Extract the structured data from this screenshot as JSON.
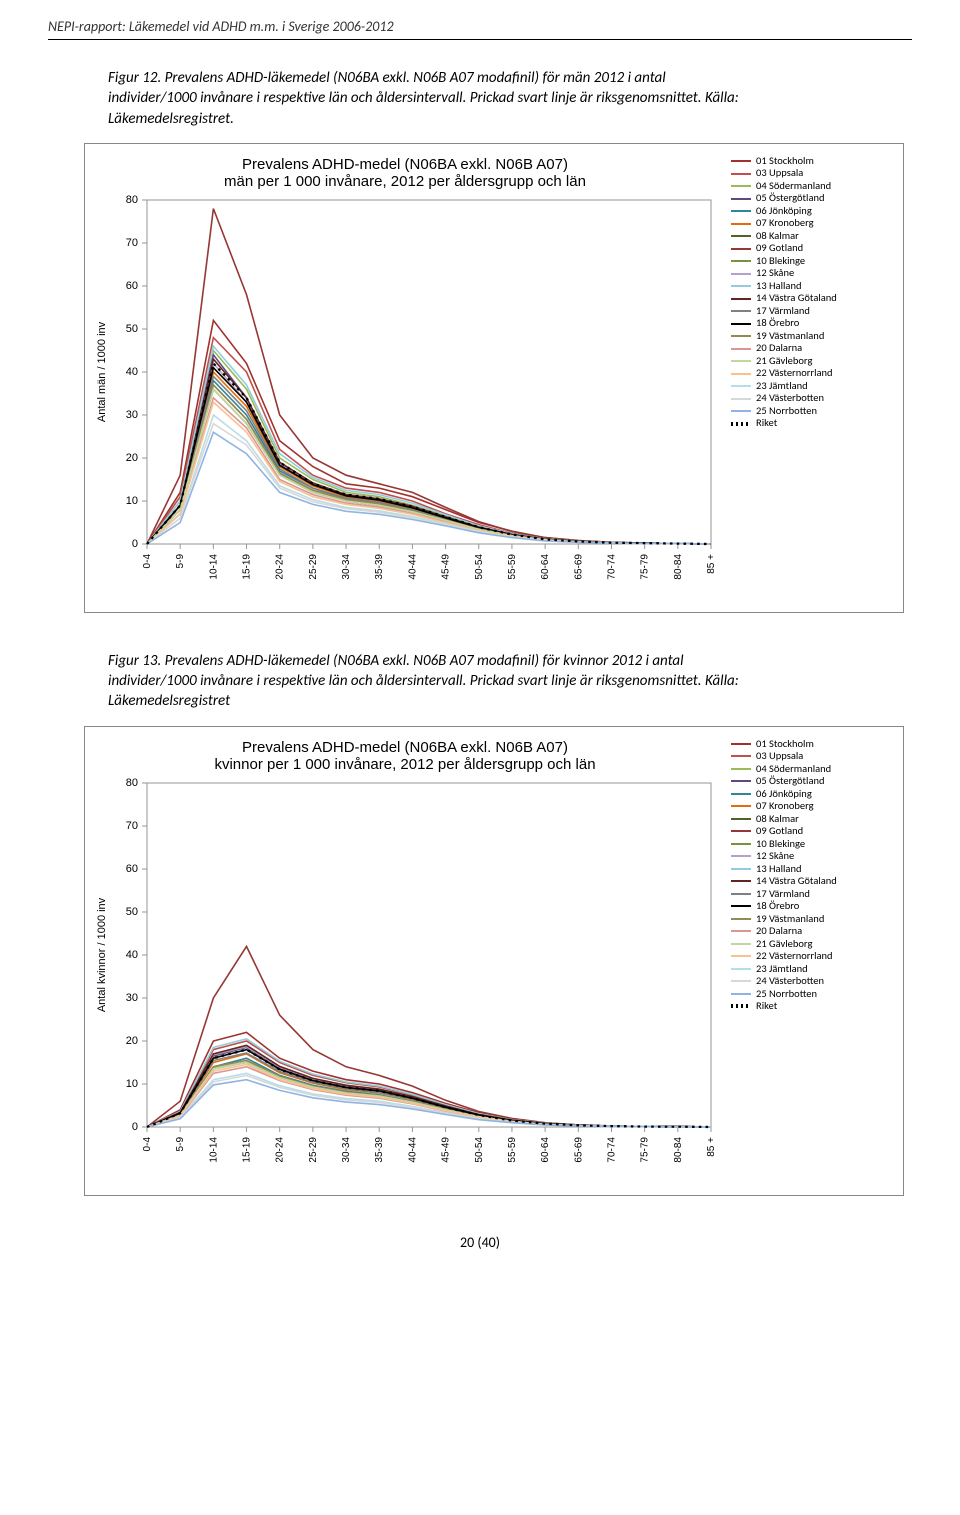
{
  "running_head": "NEPI-rapport: Läkemedel vid ADHD m.m. i Sverige 2006-2012",
  "page_number": "20 (40)",
  "caption_fig12": "Figur 12. Prevalens ADHD-läkemedel (N06BA exkl. N06B A07 modafinil) för män 2012 i antal individer/1000 invånare i respektive län och åldersintervall. Prickad svart linje är riksgenomsnittet. Källa: Läkemedelsregistret.",
  "caption_fig13": "Figur 13. Prevalens ADHD-läkemedel (N06BA exkl. N06B A07 modafinil) för kvinnor 2012 i antal individer/1000 invånare i respektive län och åldersintervall. Prickad svart linje är riksgenomsnittet. Källa: Läkemedelsregistret",
  "chart_shared": {
    "title_line1": "Prevalens ADHD-medel (N06BA exkl. N06B A07)",
    "xlabels": [
      "0-4",
      "5-9",
      "10-14",
      "15-19",
      "20-24",
      "25-29",
      "30-34",
      "35-39",
      "40-44",
      "45-49",
      "50-54",
      "55-59",
      "60-64",
      "65-69",
      "70-74",
      "75-79",
      "80-84",
      "85 +"
    ],
    "yticks": [
      0,
      10,
      20,
      30,
      40,
      50,
      60,
      70,
      80
    ],
    "ylim_max": 80,
    "axis_color": "#969696",
    "background": "#ffffff",
    "legend": [
      {
        "code": "01",
        "name": "01 Stockholm",
        "color": "#a0322e"
      },
      {
        "code": "03",
        "name": "03 Uppsala",
        "color": "#c0504d"
      },
      {
        "code": "04",
        "name": "04 Södermanland",
        "color": "#9bbb59"
      },
      {
        "code": "05",
        "name": "05 Östergötland",
        "color": "#604a7b"
      },
      {
        "code": "06",
        "name": "06 Jönköping",
        "color": "#31859c"
      },
      {
        "code": "07",
        "name": "07 Kronoberg",
        "color": "#e46c0a"
      },
      {
        "code": "08",
        "name": "08 Kalmar",
        "color": "#4f6228"
      },
      {
        "code": "09",
        "name": "09 Gotland",
        "color": "#953735"
      },
      {
        "code": "10",
        "name": "10 Blekinge",
        "color": "#77933c"
      },
      {
        "code": "12",
        "name": "12 Skåne",
        "color": "#b3a2c7"
      },
      {
        "code": "13",
        "name": "13 Halland",
        "color": "#93cddd"
      },
      {
        "code": "14",
        "name": "14 Västra Götaland",
        "color": "#632523"
      },
      {
        "code": "17",
        "name": "17 Värmland",
        "color": "#808080"
      },
      {
        "code": "18",
        "name": "18 Örebro",
        "color": "#000000"
      },
      {
        "code": "19",
        "name": "19 Västmanland",
        "color": "#948a54"
      },
      {
        "code": "20",
        "name": "20 Dalarna",
        "color": "#d99694"
      },
      {
        "code": "21",
        "name": "21 Gävleborg",
        "color": "#c3d69b"
      },
      {
        "code": "22",
        "name": "22 Västernorrland",
        "color": "#fac090"
      },
      {
        "code": "23",
        "name": "23 Jämtland",
        "color": "#b7dee8"
      },
      {
        "code": "24",
        "name": "24 Västerbotten",
        "color": "#d8d8d8"
      },
      {
        "code": "25",
        "name": "25 Norrbotten",
        "color": "#8eb4e3"
      },
      {
        "code": "R",
        "name": "Riket",
        "color": "#000000",
        "dotted": true
      }
    ]
  },
  "chart_men": {
    "title_line2": "män per 1 000 invånare, 2012 per åldersgrupp och län",
    "ylabel": "Antal män / 1000 inv",
    "series": {
      "01": [
        0,
        12,
        52,
        42,
        24,
        18,
        14,
        13,
        11,
        8,
        5,
        3,
        1.5,
        0.8,
        0.4,
        0.2,
        0.1,
        0
      ],
      "03": [
        0,
        11,
        48,
        40,
        22,
        16,
        13,
        12,
        10,
        7,
        4.5,
        2.5,
        1.3,
        0.7,
        0.4,
        0.2,
        0.1,
        0
      ],
      "04": [
        0,
        10,
        45,
        36,
        20,
        15,
        12,
        11,
        9,
        6.5,
        4,
        2.3,
        1.2,
        0.6,
        0.3,
        0.2,
        0.1,
        0
      ],
      "05": [
        0,
        9,
        44,
        34,
        19,
        14,
        11.5,
        10.5,
        8.8,
        6.3,
        3.9,
        2.2,
        1.1,
        0.6,
        0.3,
        0.2,
        0.1,
        0
      ],
      "06": [
        0,
        8,
        38,
        30,
        17,
        13,
        10.5,
        9.5,
        8,
        5.8,
        3.6,
        2,
        1,
        0.5,
        0.3,
        0.1,
        0.1,
        0
      ],
      "07": [
        0,
        9,
        40,
        32,
        18,
        13.5,
        11,
        10,
        8.3,
        6,
        3.7,
        2.1,
        1.1,
        0.6,
        0.3,
        0.2,
        0.1,
        0
      ],
      "08": [
        0,
        8,
        36,
        28,
        16,
        12,
        10,
        9,
        7.5,
        5.5,
        3.4,
        1.9,
        1,
        0.5,
        0.3,
        0.1,
        0.1,
        0
      ],
      "09": [
        0,
        16,
        78,
        58,
        30,
        20,
        16,
        14,
        12,
        8.5,
        5.2,
        2.9,
        1.5,
        0.8,
        0.4,
        0.2,
        0.1,
        0
      ],
      "10": [
        0,
        8,
        37,
        29,
        16.5,
        12.5,
        10.3,
        9.3,
        7.7,
        5.6,
        3.5,
        2,
        1,
        0.5,
        0.3,
        0.1,
        0.1,
        0
      ],
      "12": [
        0,
        9,
        42,
        33,
        18.5,
        14,
        11.3,
        10.3,
        8.5,
        6.2,
        3.8,
        2.2,
        1.1,
        0.6,
        0.3,
        0.2,
        0.1,
        0
      ],
      "13": [
        0,
        10,
        46,
        37,
        21,
        15.5,
        12.5,
        11.5,
        9.5,
        6.8,
        4.2,
        2.4,
        1.2,
        0.7,
        0.3,
        0.2,
        0.1,
        0
      ],
      "14": [
        0,
        9,
        43,
        34,
        19,
        14.2,
        11.5,
        10.5,
        8.7,
        6.3,
        3.9,
        2.2,
        1.1,
        0.6,
        0.3,
        0.2,
        0.1,
        0
      ],
      "17": [
        0,
        8,
        39,
        31,
        17.5,
        13,
        10.7,
        9.7,
        8,
        5.9,
        3.6,
        2.1,
        1.1,
        0.6,
        0.3,
        0.2,
        0.1,
        0
      ],
      "18": [
        0,
        9,
        41,
        33,
        18.3,
        13.8,
        11.2,
        10.2,
        8.4,
        6.1,
        3.8,
        2.2,
        1.1,
        0.6,
        0.3,
        0.2,
        0.1,
        0
      ],
      "19": [
        0,
        8,
        37,
        29,
        16.5,
        12.5,
        10.3,
        9.3,
        7.7,
        5.6,
        3.5,
        2,
        1,
        0.5,
        0.3,
        0.1,
        0.1,
        0
      ],
      "20": [
        0,
        7,
        34,
        27,
        15,
        11.5,
        9.5,
        8.6,
        7.1,
        5.2,
        3.2,
        1.8,
        0.9,
        0.5,
        0.2,
        0.1,
        0.1,
        0
      ],
      "21": [
        0,
        8,
        36,
        28,
        16,
        12,
        10,
        9,
        7.5,
        5.5,
        3.4,
        1.9,
        1,
        0.5,
        0.3,
        0.1,
        0.1,
        0
      ],
      "22": [
        0,
        7,
        33,
        26,
        14.5,
        11,
        9.2,
        8.3,
        6.9,
        5,
        3.1,
        1.8,
        0.9,
        0.5,
        0.2,
        0.1,
        0.1,
        0
      ],
      "23": [
        0,
        6,
        30,
        24,
        13.5,
        10.3,
        8.5,
        7.7,
        6.4,
        4.7,
        2.9,
        1.6,
        0.8,
        0.4,
        0.2,
        0.1,
        0.1,
        0
      ],
      "24": [
        0,
        6,
        28,
        23,
        13,
        9.8,
        8.2,
        7.4,
        6.1,
        4.5,
        2.8,
        1.6,
        0.8,
        0.4,
        0.2,
        0.1,
        0.1,
        0
      ],
      "25": [
        0,
        5,
        26,
        21,
        12,
        9.2,
        7.6,
        6.9,
        5.7,
        4.2,
        2.6,
        1.5,
        0.7,
        0.4,
        0.2,
        0.1,
        0.1,
        0
      ],
      "R": [
        0,
        9,
        42,
        34,
        19,
        14,
        11.5,
        10.5,
        8.7,
        6.3,
        3.9,
        2.2,
        1.1,
        0.6,
        0.3,
        0.2,
        0.1,
        0
      ]
    }
  },
  "chart_women": {
    "title_line2": "kvinnor per 1 000 invånare, 2012 per åldersgrupp och län",
    "ylabel": "Antal kvinnor / 1000 inv",
    "series": {
      "01": [
        0,
        4,
        20,
        22,
        16,
        13,
        11,
        10,
        8,
        5.5,
        3.3,
        1.8,
        0.9,
        0.5,
        0.2,
        0.1,
        0.1,
        0
      ],
      "03": [
        0,
        3.5,
        18,
        20,
        15,
        12,
        10.3,
        9.3,
        7.5,
        5.1,
        3.1,
        1.7,
        0.8,
        0.4,
        0.2,
        0.1,
        0.1,
        0
      ],
      "04": [
        0,
        3.3,
        17,
        19,
        14,
        11.3,
        9.7,
        8.8,
        7.1,
        4.9,
        2.9,
        1.6,
        0.8,
        0.4,
        0.2,
        0.1,
        0.1,
        0
      ],
      "05": [
        0,
        3.2,
        16.5,
        18.5,
        13.7,
        11,
        9.5,
        8.6,
        6.9,
        4.7,
        2.8,
        1.6,
        0.8,
        0.4,
        0.2,
        0.1,
        0.1,
        0
      ],
      "06": [
        0,
        2.8,
        14,
        16,
        12,
        9.7,
        8.3,
        7.5,
        6,
        4.1,
        2.5,
        1.4,
        0.7,
        0.3,
        0.2,
        0.1,
        0,
        0
      ],
      "07": [
        0,
        3,
        15,
        17,
        12.6,
        10.2,
        8.7,
        7.9,
        6.4,
        4.4,
        2.6,
        1.5,
        0.7,
        0.4,
        0.2,
        0.1,
        0.1,
        0
      ],
      "08": [
        0,
        2.7,
        13.5,
        15,
        11.5,
        9.3,
        7.9,
        7.2,
        5.8,
        4,
        2.4,
        1.3,
        0.6,
        0.3,
        0.2,
        0.1,
        0,
        0
      ],
      "09": [
        0,
        6,
        30,
        42,
        26,
        18,
        14,
        12,
        9.5,
        6.2,
        3.6,
        2,
        1,
        0.5,
        0.2,
        0.1,
        0.1,
        0
      ],
      "10": [
        0,
        2.8,
        14,
        15.5,
        11.8,
        9.5,
        8.1,
        7.3,
        5.9,
        4,
        2.4,
        1.3,
        0.7,
        0.3,
        0.2,
        0.1,
        0,
        0
      ],
      "12": [
        0,
        3.3,
        16.8,
        18.7,
        13.9,
        11.2,
        9.6,
        8.7,
        7,
        4.8,
        2.9,
        1.6,
        0.8,
        0.4,
        0.2,
        0.1,
        0.1,
        0
      ],
      "13": [
        0,
        3.6,
        18.5,
        20.5,
        15.3,
        12.3,
        10.5,
        9.5,
        7.6,
        5.2,
        3.1,
        1.7,
        0.9,
        0.4,
        0.2,
        0.1,
        0.1,
        0
      ],
      "14": [
        0,
        3.4,
        17,
        19,
        14.1,
        11.3,
        9.7,
        8.8,
        7.1,
        4.9,
        2.9,
        1.6,
        0.8,
        0.4,
        0.2,
        0.1,
        0.1,
        0
      ],
      "17": [
        0,
        3,
        15.5,
        17.2,
        12.9,
        10.4,
        8.9,
        8,
        6.5,
        4.4,
        2.7,
        1.5,
        0.7,
        0.4,
        0.2,
        0.1,
        0.1,
        0
      ],
      "18": [
        0,
        3.2,
        16,
        18,
        13.4,
        10.8,
        9.2,
        8.4,
        6.7,
        4.6,
        2.8,
        1.5,
        0.8,
        0.4,
        0.2,
        0.1,
        0.1,
        0
      ],
      "19": [
        0,
        2.8,
        14,
        15.5,
        11.8,
        9.5,
        8.1,
        7.3,
        5.9,
        4,
        2.4,
        1.3,
        0.7,
        0.3,
        0.2,
        0.1,
        0,
        0
      ],
      "20": [
        0,
        2.5,
        12.5,
        14,
        10.8,
        8.7,
        7.4,
        6.7,
        5.4,
        3.7,
        2.2,
        1.2,
        0.6,
        0.3,
        0.1,
        0.1,
        0,
        0
      ],
      "21": [
        0,
        2.7,
        13.5,
        15,
        11.5,
        9.3,
        7.9,
        7.2,
        5.8,
        4,
        2.4,
        1.3,
        0.6,
        0.3,
        0.2,
        0.1,
        0,
        0
      ],
      "22": [
        0,
        2.6,
        13,
        14.5,
        11,
        8.9,
        7.6,
        6.9,
        5.5,
        3.8,
        2.3,
        1.3,
        0.6,
        0.3,
        0.1,
        0.1,
        0,
        0
      ],
      "23": [
        0,
        2.2,
        11,
        12.5,
        9.6,
        7.7,
        6.6,
        6,
        4.8,
        3.3,
        2,
        1.1,
        0.5,
        0.3,
        0.1,
        0.1,
        0,
        0
      ],
      "24": [
        0,
        2.1,
        10.5,
        12,
        9.2,
        7.4,
        6.3,
        5.7,
        4.6,
        3.1,
        1.9,
        1,
        0.5,
        0.3,
        0.1,
        0.1,
        0,
        0
      ],
      "25": [
        0,
        1.9,
        9.8,
        11,
        8.5,
        6.8,
        5.8,
        5.2,
        4.2,
        2.9,
        1.7,
        1,
        0.5,
        0.2,
        0.1,
        0.1,
        0,
        0
      ],
      "R": [
        0,
        3.2,
        16,
        18,
        13.4,
        10.8,
        9.2,
        8.4,
        6.7,
        4.6,
        2.8,
        1.5,
        0.8,
        0.4,
        0.2,
        0.1,
        0.1,
        0
      ]
    }
  }
}
